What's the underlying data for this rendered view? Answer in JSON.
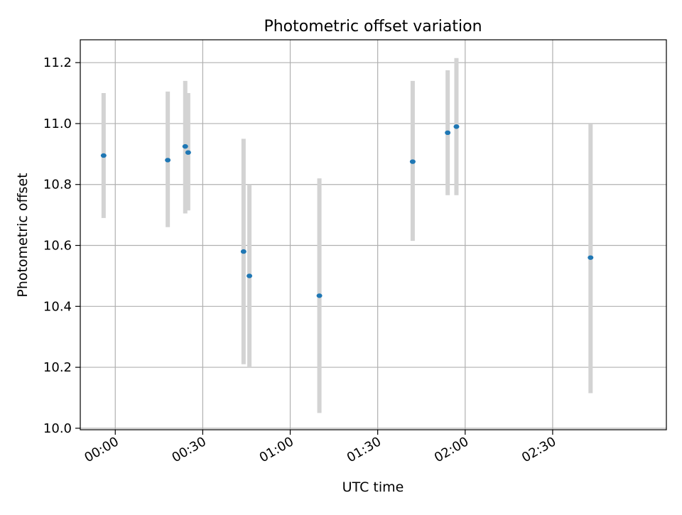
{
  "chart_data": {
    "type": "scatter",
    "title": "Photometric offset variation",
    "xlabel": "UTC time",
    "ylabel": "Photometric offset",
    "x_unit": "time",
    "xlim": [
      "23:48",
      "03:09"
    ],
    "ylim": [
      9.995,
      11.275
    ],
    "x_ticks": [
      "00:00",
      "00:30",
      "01:00",
      "01:30",
      "02:00",
      "02:30"
    ],
    "y_ticks": [
      "10.0",
      "10.2",
      "10.4",
      "10.6",
      "10.8",
      "11.0",
      "11.2"
    ],
    "grid": true,
    "points": [
      {
        "x": "23:56",
        "y": 10.895,
        "err_low": 10.69,
        "err_high": 11.1
      },
      {
        "x": "00:18",
        "y": 10.88,
        "err_low": 10.66,
        "err_high": 11.105
      },
      {
        "x": "00:24",
        "y": 10.925,
        "err_low": 10.705,
        "err_high": 11.14
      },
      {
        "x": "00:25",
        "y": 10.905,
        "err_low": 10.715,
        "err_high": 11.1
      },
      {
        "x": "00:44",
        "y": 10.58,
        "err_low": 10.21,
        "err_high": 10.95
      },
      {
        "x": "00:46",
        "y": 10.5,
        "err_low": 10.2,
        "err_high": 10.8
      },
      {
        "x": "01:10",
        "y": 10.435,
        "err_low": 10.05,
        "err_high": 10.82
      },
      {
        "x": "01:42",
        "y": 10.875,
        "err_low": 10.615,
        "err_high": 11.14
      },
      {
        "x": "01:54",
        "y": 10.97,
        "err_low": 10.765,
        "err_high": 11.175
      },
      {
        "x": "01:57",
        "y": 10.99,
        "err_low": 10.765,
        "err_high": 11.215
      },
      {
        "x": "02:43",
        "y": 10.56,
        "err_low": 10.115,
        "err_high": 11.0
      }
    ],
    "marker_color": "#1f77b4",
    "errorbar_color": "#d3d3d3",
    "grid_color": "#b0b0b0"
  }
}
